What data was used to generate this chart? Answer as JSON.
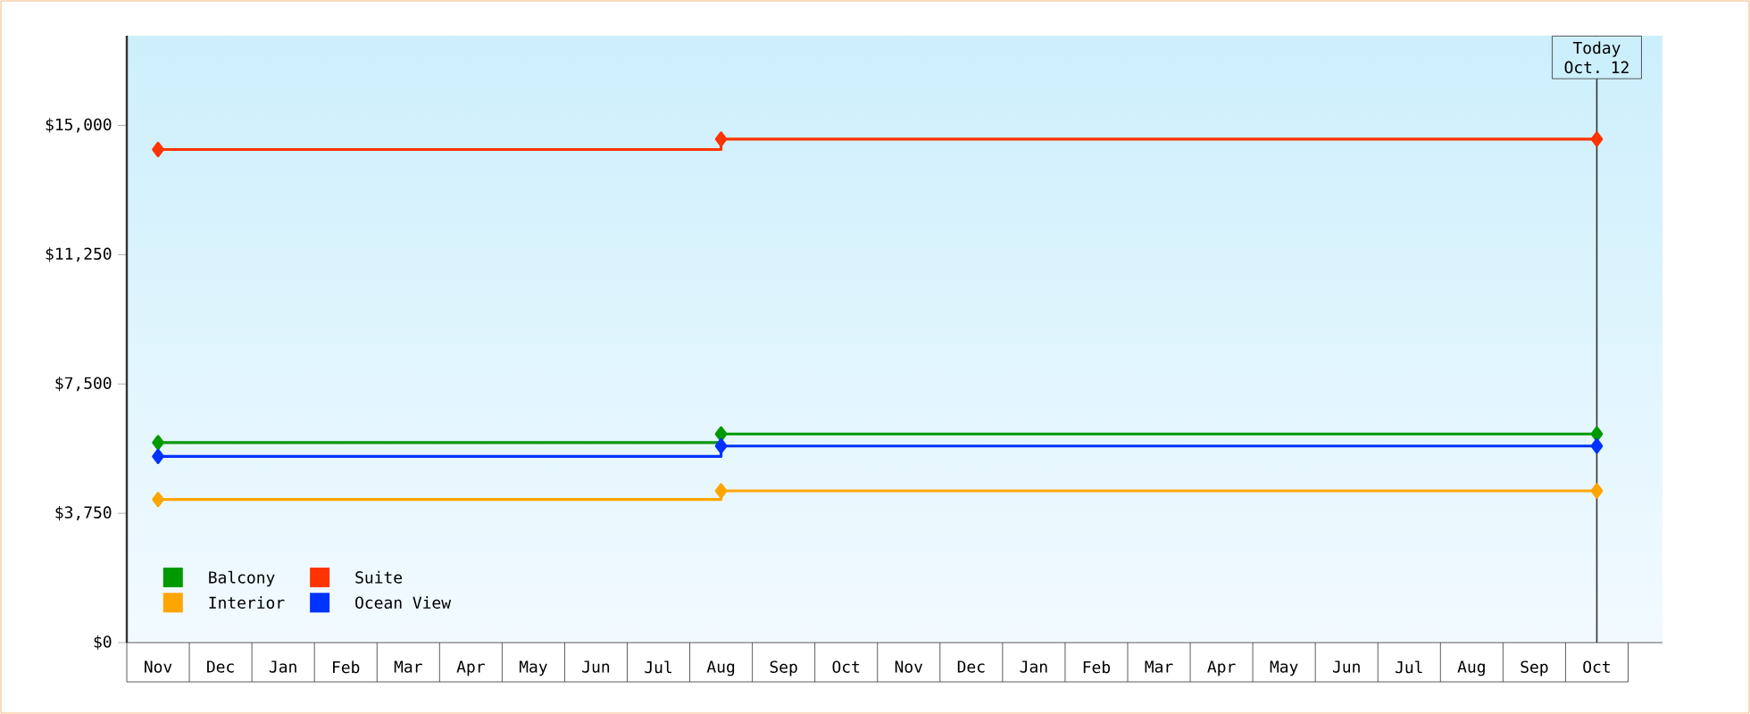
{
  "chart_data": {
    "type": "step",
    "categories": [
      "Nov",
      "Dec",
      "Jan",
      "Feb",
      "Mar",
      "Apr",
      "May",
      "Jun",
      "Jul",
      "Aug",
      "Sep",
      "Oct",
      "Nov",
      "Dec",
      "Jan",
      "Feb",
      "Mar",
      "Apr",
      "May",
      "Jun",
      "Jul",
      "Aug",
      "Sep",
      "Oct"
    ],
    "series": [
      {
        "name": "Balcony",
        "color": "#009900",
        "values": [
          5800,
          null,
          null,
          null,
          null,
          null,
          null,
          null,
          null,
          6050,
          null,
          null,
          null,
          null,
          null,
          null,
          null,
          null,
          null,
          null,
          null,
          null,
          null,
          6050
        ]
      },
      {
        "name": "Suite",
        "color": "#ff3300",
        "values": [
          14300,
          null,
          null,
          null,
          null,
          null,
          null,
          null,
          null,
          14600,
          null,
          null,
          null,
          null,
          null,
          null,
          null,
          null,
          null,
          null,
          null,
          null,
          null,
          14600
        ]
      },
      {
        "name": "Interior",
        "color": "#ffa500",
        "values": [
          4150,
          null,
          null,
          null,
          null,
          null,
          null,
          null,
          null,
          4400,
          null,
          null,
          null,
          null,
          null,
          null,
          null,
          null,
          null,
          null,
          null,
          null,
          null,
          4400
        ]
      },
      {
        "name": "Ocean View",
        "color": "#0033ff",
        "values": [
          5400,
          null,
          null,
          null,
          null,
          null,
          null,
          null,
          null,
          5700,
          null,
          null,
          null,
          null,
          null,
          null,
          null,
          null,
          null,
          null,
          null,
          null,
          null,
          5700
        ]
      }
    ],
    "ylim": [
      0,
      17600
    ],
    "yticks": [
      {
        "value": 0,
        "label": "$0"
      },
      {
        "value": 3750,
        "label": "$3,750"
      },
      {
        "value": 7500,
        "label": "$7,500"
      },
      {
        "value": 11250,
        "label": "$11,250"
      },
      {
        "value": 15000,
        "label": "$15,000"
      }
    ],
    "annotations": [
      "Today Oct. 12"
    ],
    "legend": "bottom left",
    "marker": "diamond",
    "line_style": "solid"
  }
}
